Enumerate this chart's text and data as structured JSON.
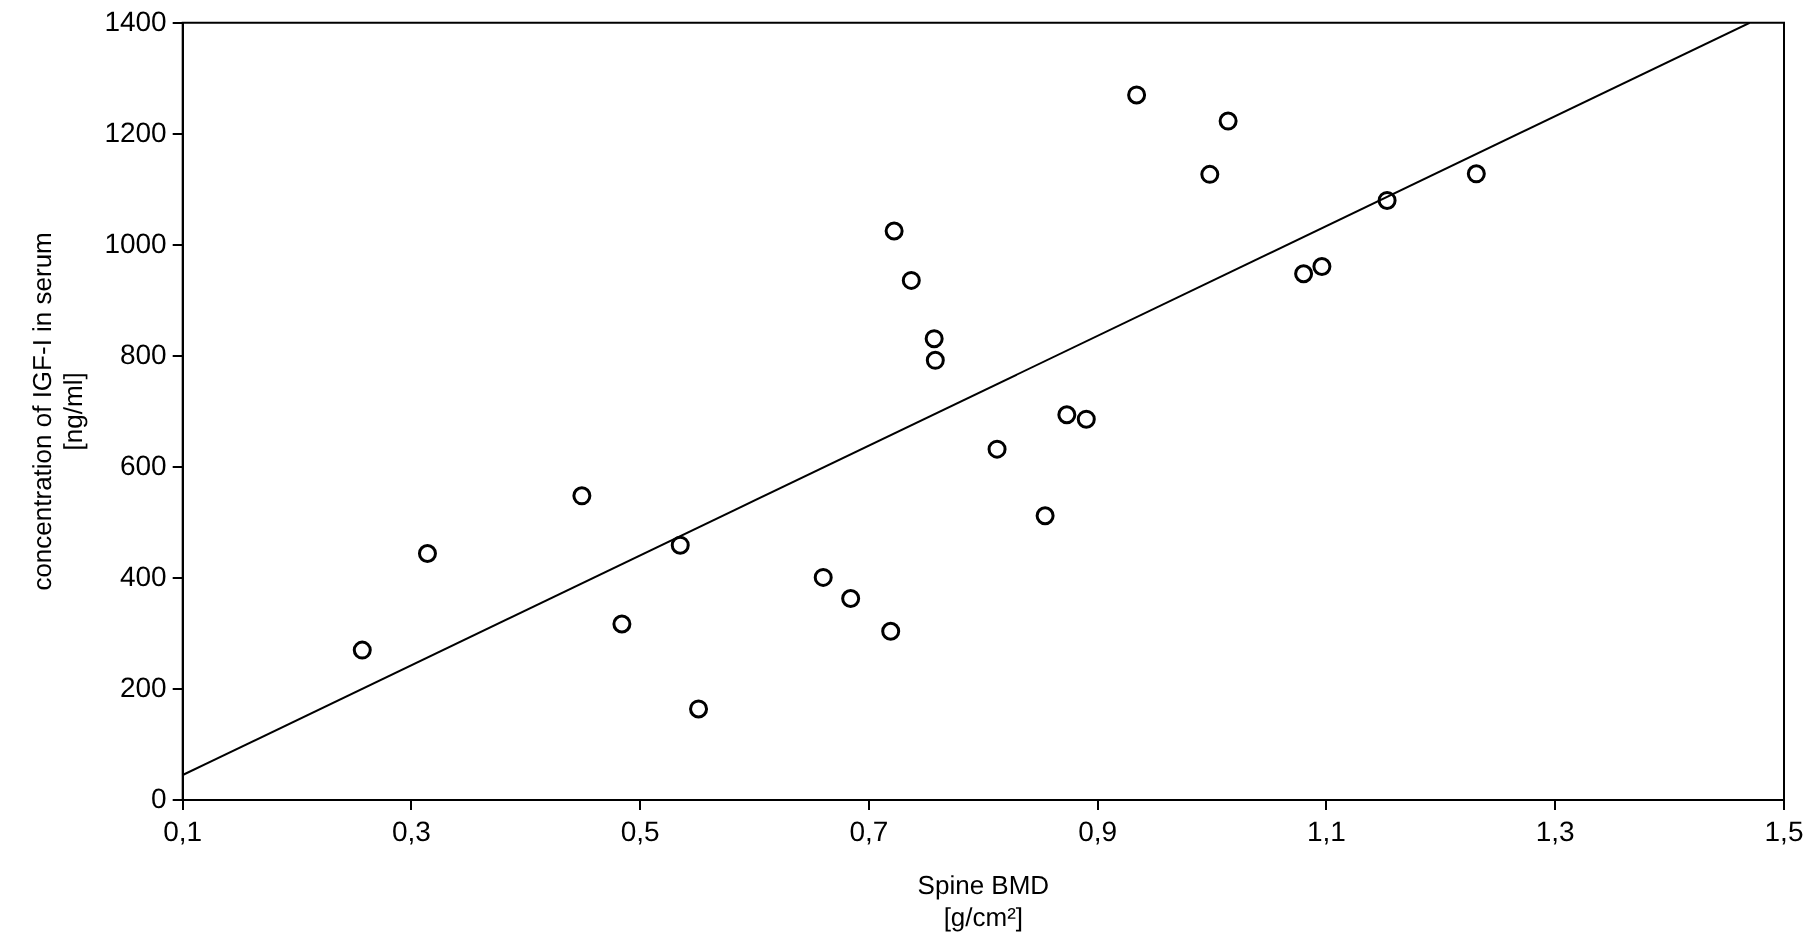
{
  "chart_data": {
    "type": "scatter",
    "xlabel": "Spine BMD\n[g/cm²]",
    "ylabel": "concentration of IGF-I in serum\n[ng/ml]",
    "xlim": [
      0.1,
      1.5
    ],
    "ylim": [
      0,
      1400
    ],
    "xticks": [
      {
        "value": 0.1,
        "label": "0,1"
      },
      {
        "value": 0.3,
        "label": "0,3"
      },
      {
        "value": 0.5,
        "label": "0,5"
      },
      {
        "value": 0.7,
        "label": "0,7"
      },
      {
        "value": 0.9,
        "label": "0,9"
      },
      {
        "value": 1.1,
        "label": "1,1"
      },
      {
        "value": 1.3,
        "label": "1,3"
      },
      {
        "value": 1.5,
        "label": "1,5"
      }
    ],
    "yticks": [
      0,
      200,
      400,
      600,
      800,
      1000,
      1200,
      1400
    ],
    "grid": false,
    "legend": false,
    "series": [
      {
        "color": "#000000",
        "marker": "circle",
        "x": [
          0.257,
          0.314,
          0.449,
          0.484,
          0.535,
          0.551,
          0.66,
          0.684,
          0.719,
          0.722,
          0.737,
          0.757,
          0.758,
          0.812,
          0.854,
          0.873,
          0.89,
          0.934,
          0.998,
          1.014,
          1.08,
          1.096,
          1.153,
          1.231
        ],
        "values": [
          270,
          444,
          548,
          317,
          459,
          164,
          401,
          363,
          304,
          1025,
          936,
          831,
          792,
          632,
          512,
          694,
          686,
          1270,
          1127,
          1223,
          948,
          961,
          1080,
          1128
        ]
      },
      {
        "type": "line",
        "color": "#000000",
        "x": [
          0.1,
          1.47
        ],
        "values": [
          45,
          1400
        ],
        "line_style": "solid",
        "marker": "none"
      }
    ]
  }
}
